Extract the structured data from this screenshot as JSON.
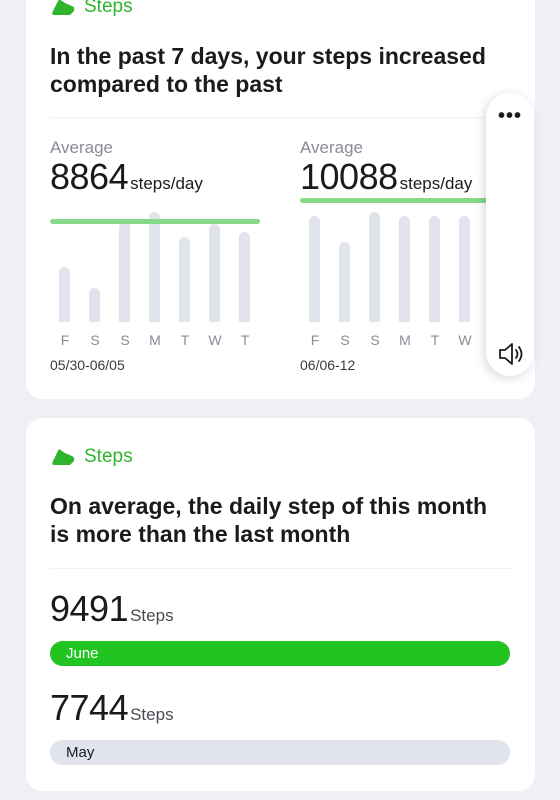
{
  "card1": {
    "brand": "Steps",
    "headline": "In the past 7 days, your steps increased compared to the past",
    "left_chart": {
      "label": "Average",
      "value": "8864",
      "unit": "steps/day",
      "range": "05/30-06/05",
      "days": [
        "F",
        "S",
        "S",
        "M",
        "T",
        "W",
        "T"
      ]
    },
    "right_chart": {
      "label": "Average",
      "value": "10088",
      "unit": "steps/day",
      "range": "06/06-12",
      "days": [
        "F",
        "S",
        "S",
        "M",
        "T",
        "W"
      ]
    }
  },
  "popup": {
    "more_icon": "more-icon",
    "speaker_icon": "speaker-icon"
  },
  "card2": {
    "brand": "Steps",
    "headline": "On average, the daily step of this month is more than the last month",
    "current": {
      "value": "9491",
      "unit": "Steps",
      "month": "June"
    },
    "previous": {
      "value": "7744",
      "unit": "Steps",
      "month": "May"
    }
  },
  "colors": {
    "accent_green": "#22c422",
    "avg_line_green": "#86d986",
    "bar_grey": "#e1e3ed",
    "background": "#eef0f5"
  }
}
